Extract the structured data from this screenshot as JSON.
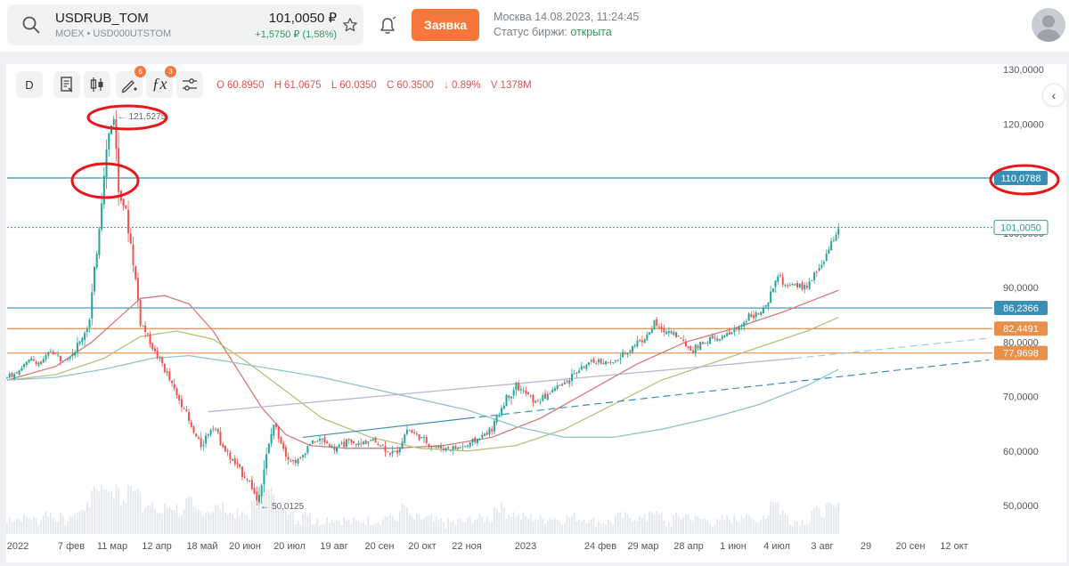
{
  "header": {
    "symbol": "USDRUB_TOM",
    "subtitle": "MOEX • USD000UTSTOM",
    "price": "101,0050 ₽",
    "change": "+1,5750 ₽ (1,58%)",
    "order_button": "Заявка",
    "datetime": "Москва 14.08.2023, 11:24:45",
    "status_label": "Статус биржи:",
    "status_value": "открыта",
    "icons": [
      "search-icon",
      "star-icon",
      "bell-icon",
      "avatar-icon"
    ]
  },
  "toolbar": {
    "interval": "D",
    "indicators_badge": "6",
    "functions_badge": "3",
    "ohlc": {
      "o_label": "O",
      "o": "60.8950",
      "h_label": "H",
      "h": "61.0675",
      "l_label": "L",
      "l": "60.0350",
      "c_label": "C",
      "c": "60.3500",
      "pct": "↓ 0.89%",
      "v_label": "V",
      "v": "1378M"
    }
  },
  "colors": {
    "up": "#26a69a",
    "down": "#ef5350",
    "accent": "#f6763c",
    "level_blue": "#3a8fb7",
    "level_orange": "#e88f4a",
    "last_price": "#2a9d8f",
    "annotation": "#e8171a"
  },
  "chart_data": {
    "type": "candlestick",
    "y_ticks": [
      "130,0000",
      "120,0000",
      "110,0000",
      "100,0000",
      "90,0000",
      "80,0000",
      "70,0000",
      "60,0000",
      "50,0000"
    ],
    "ylim": [
      46,
      134
    ],
    "x_ticks": [
      "2022",
      "7 фев",
      "11 мар",
      "12 апр",
      "18 май",
      "20 июн",
      "20 июл",
      "19 авг",
      "20 сен",
      "20 окт",
      "22 ноя",
      "2023",
      "24 фев",
      "29 мар",
      "28 апр",
      "1 июн",
      "4 июл",
      "3 авг",
      "29",
      "20 сен",
      "12 окт"
    ],
    "price_path": [
      [
        0,
        73.5
      ],
      [
        5,
        75.0
      ],
      [
        10,
        76.8
      ],
      [
        14,
        76.0
      ],
      [
        18,
        78.5
      ],
      [
        22,
        77.0
      ],
      [
        26,
        77.5
      ],
      [
        30,
        80.0
      ],
      [
        34,
        84.0
      ],
      [
        37,
        97.0
      ],
      [
        40,
        112.0
      ],
      [
        42,
        118.0
      ],
      [
        44,
        121.5
      ],
      [
        46,
        108.0
      ],
      [
        49,
        104.0
      ],
      [
        52,
        95.0
      ],
      [
        55,
        84.0
      ],
      [
        58,
        81.0
      ],
      [
        61,
        78.0
      ],
      [
        64,
        76.0
      ],
      [
        67,
        73.0
      ],
      [
        70,
        70.0
      ],
      [
        73,
        68.0
      ],
      [
        76,
        64.0
      ],
      [
        80,
        61.0
      ],
      [
        85,
        65.0
      ],
      [
        90,
        60.0
      ],
      [
        95,
        57.0
      ],
      [
        100,
        54.5
      ],
      [
        103,
        51.0
      ],
      [
        106,
        57.0
      ],
      [
        110,
        65.0
      ],
      [
        115,
        59.5
      ],
      [
        118,
        58.0
      ],
      [
        121,
        58.5
      ],
      [
        125,
        61.5
      ],
      [
        130,
        62.0
      ],
      [
        135,
        60.5
      ],
      [
        140,
        61.5
      ],
      [
        145,
        61.2
      ],
      [
        150,
        62.0
      ],
      [
        155,
        61.0
      ],
      [
        158,
        59.5
      ],
      [
        161,
        60.0
      ],
      [
        165,
        64.0
      ],
      [
        170,
        62.5
      ],
      [
        175,
        61.0
      ],
      [
        180,
        60.5
      ],
      [
        185,
        60.5
      ],
      [
        190,
        61.0
      ],
      [
        195,
        62.5
      ],
      [
        200,
        64.0
      ],
      [
        205,
        69.0
      ],
      [
        210,
        72.0
      ],
      [
        214,
        70.5
      ],
      [
        218,
        69.0
      ],
      [
        222,
        70.0
      ],
      [
        226,
        71.5
      ],
      [
        230,
        72.5
      ],
      [
        235,
        74.5
      ],
      [
        240,
        76.0
      ],
      [
        245,
        76.5
      ],
      [
        250,
        76.0
      ],
      [
        255,
        78.0
      ],
      [
        260,
        80.0
      ],
      [
        264,
        81.0
      ],
      [
        267,
        83.5
      ],
      [
        270,
        82.0
      ],
      [
        274,
        82.0
      ],
      [
        278,
        80.5
      ],
      [
        282,
        78.5
      ],
      [
        286,
        79.5
      ],
      [
        290,
        80.5
      ],
      [
        294,
        80.5
      ],
      [
        298,
        81.5
      ],
      [
        302,
        82.5
      ],
      [
        306,
        85.0
      ],
      [
        310,
        85.0
      ],
      [
        314,
        87.0
      ],
      [
        316,
        90.0
      ],
      [
        318,
        92.5
      ],
      [
        320,
        91.0
      ],
      [
        322,
        90.0
      ],
      [
        325,
        90.5
      ],
      [
        328,
        90.0
      ],
      [
        331,
        90.5
      ],
      [
        334,
        93.0
      ],
      [
        337,
        95.0
      ],
      [
        339,
        97.0
      ],
      [
        341,
        99.0
      ],
      [
        343,
        101.0
      ]
    ],
    "price_low_markers": [
      {
        "label": "← 121,5275",
        "value": 121.5275,
        "type": "high"
      },
      {
        "label": "← 50,0125",
        "value": 50.0125,
        "type": "low"
      }
    ],
    "horizontal_levels": [
      {
        "label": "110,0788",
        "value": 110.0788,
        "color": "#3a8fb7"
      },
      {
        "label": "86,2366",
        "value": 86.2366,
        "color": "#3a8fb7"
      },
      {
        "label": "82,4491",
        "value": 82.4491,
        "color": "#e88f4a"
      },
      {
        "label": "77,9698",
        "value": 77.9698,
        "color": "#e88f4a"
      }
    ],
    "last_price": {
      "label": "101,0050",
      "value": 101.005
    },
    "moving_averages": [
      {
        "color": "#d77a7a",
        "points": [
          [
            0,
            73
          ],
          [
            20,
            75.5
          ],
          [
            35,
            80
          ],
          [
            45,
            84
          ],
          [
            55,
            88
          ],
          [
            65,
            88.5
          ],
          [
            75,
            87
          ],
          [
            85,
            82
          ],
          [
            95,
            75
          ],
          [
            105,
            68
          ],
          [
            115,
            63
          ],
          [
            125,
            61
          ],
          [
            140,
            60.5
          ],
          [
            160,
            60.5
          ],
          [
            180,
            61
          ],
          [
            200,
            62.5
          ],
          [
            220,
            66
          ],
          [
            240,
            71
          ],
          [
            260,
            76
          ],
          [
            280,
            80
          ],
          [
            300,
            82.5
          ],
          [
            320,
            85.5
          ],
          [
            343,
            89.5
          ]
        ]
      },
      {
        "color": "#b5c27a",
        "points": [
          [
            0,
            73
          ],
          [
            20,
            74
          ],
          [
            40,
            77
          ],
          [
            55,
            81
          ],
          [
            70,
            82
          ],
          [
            85,
            80.5
          ],
          [
            100,
            76
          ],
          [
            115,
            71
          ],
          [
            130,
            66
          ],
          [
            150,
            62.5
          ],
          [
            170,
            60.5
          ],
          [
            190,
            60
          ],
          [
            210,
            61
          ],
          [
            230,
            64
          ],
          [
            250,
            68.5
          ],
          [
            270,
            73
          ],
          [
            290,
            76
          ],
          [
            310,
            79
          ],
          [
            330,
            82
          ],
          [
            343,
            84.5
          ]
        ]
      },
      {
        "color": "#8ec3d1",
        "points": [
          [
            0,
            73
          ],
          [
            20,
            73.5
          ],
          [
            40,
            75
          ],
          [
            60,
            77
          ],
          [
            75,
            77.5
          ],
          [
            90,
            76.5
          ],
          [
            110,
            75
          ],
          [
            130,
            73.5
          ],
          [
            150,
            71.5
          ],
          [
            170,
            69.5
          ],
          [
            190,
            67.5
          ],
          [
            210,
            64.5
          ],
          [
            230,
            62.5
          ],
          [
            250,
            62.5
          ],
          [
            270,
            64
          ],
          [
            290,
            66
          ],
          [
            310,
            68.5
          ],
          [
            330,
            72
          ],
          [
            343,
            75
          ]
        ]
      }
    ],
    "trend_lines": [
      {
        "color": "#b7b0d6",
        "from": [
          83,
          67.2
        ],
        "to": [
          325,
          77.0
        ]
      },
      {
        "color": "#a8c8e0",
        "from": [
          325,
          77.0
        ],
        "to": [
          405,
          80.7
        ],
        "dashed": true
      },
      {
        "color": "#3a8fb7",
        "from": [
          122,
          62.5
        ],
        "to": [
          190,
          66.0
        ]
      },
      {
        "color": "#3a8fb7",
        "from": [
          190,
          66.0
        ],
        "to": [
          405,
          76.7
        ],
        "dashed": true
      }
    ],
    "annotations": [
      "ellipse-high",
      "ellipse-level-chart",
      "ellipse-level-label"
    ],
    "x_count": 405,
    "data_end": 343,
    "grid": false
  }
}
